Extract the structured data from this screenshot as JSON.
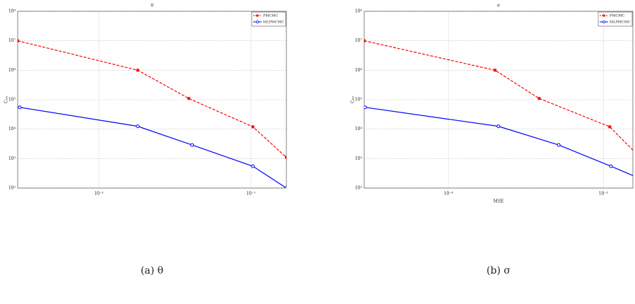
{
  "chart_data": [
    {
      "type": "line",
      "title": "θ",
      "caption": "(a)  θ",
      "y_label": "Cₜₒₜ",
      "xscale": "log",
      "yscale": "log",
      "grid": true,
      "legend": "upper right",
      "xlim": [
        0.00292,
        0.171
      ],
      "ylim": [
        100,
        100000000
      ],
      "xticks": [
        {
          "value": 0.01,
          "label": "10⁻²"
        },
        {
          "value": 0.1,
          "label": "10⁻¹"
        }
      ],
      "yticks": [
        {
          "value": 100,
          "label": "10²"
        },
        {
          "value": 1000,
          "label": "10³"
        },
        {
          "value": 10000,
          "label": "10⁴"
        },
        {
          "value": 100000,
          "label": "10⁵"
        },
        {
          "value": 1000000,
          "label": "10⁶"
        },
        {
          "value": 10000000,
          "label": "10⁷"
        },
        {
          "value": 100000000,
          "label": "10⁸"
        }
      ],
      "series": [
        {
          "name": "PMCMC",
          "color": "#ff0000",
          "linestyle": "dashed",
          "marker": "square",
          "x": [
            0.00292,
            0.018,
            0.039,
            0.103,
            0.171
          ],
          "values": [
            10000000,
            1000000,
            110000,
            12000,
            1100
          ]
        },
        {
          "name": "MLPMCMC",
          "color": "#0000ff",
          "linestyle": "solid",
          "marker": "circle",
          "x": [
            0.00301,
            0.018,
            0.041,
            0.103,
            0.171
          ],
          "values": [
            55000,
            12500,
            2900,
            550,
            100
          ]
        }
      ]
    },
    {
      "type": "line",
      "title": "σ",
      "caption": "(b)  σ",
      "y_label": "Cₜₒₜ",
      "x_label": "MSE",
      "xscale": "log",
      "yscale": "log",
      "grid": true,
      "legend": "upper right",
      "xlim": [
        2.86e-05,
        0.00155
      ],
      "ylim": [
        100,
        100000000
      ],
      "xticks": [
        {
          "value": 0.0001,
          "label": "10⁻⁴"
        },
        {
          "value": 0.001,
          "label": "10⁻³"
        }
      ],
      "yticks": [
        {
          "value": 100,
          "label": "10²"
        },
        {
          "value": 1000,
          "label": "10³"
        },
        {
          "value": 10000,
          "label": "10⁴"
        },
        {
          "value": 100000,
          "label": "10⁵"
        },
        {
          "value": 1000000,
          "label": "10⁶"
        },
        {
          "value": 10000000,
          "label": "10⁷"
        },
        {
          "value": 100000000,
          "label": "10⁸"
        }
      ],
      "series": [
        {
          "name": "PMCMC",
          "color": "#ff0000",
          "linestyle": "dashed",
          "marker": "square",
          "x": [
            2.86e-05,
            0.0002,
            0.000385,
            0.0011,
            0.002
          ],
          "values": [
            10000000,
            1000000,
            110000,
            12000,
            500
          ]
        },
        {
          "name": "MLPMCMC",
          "color": "#0000ff",
          "linestyle": "solid",
          "marker": "circle",
          "x": [
            2.9e-05,
            0.00021,
            0.000515,
            0.00112,
            0.002
          ],
          "values": [
            55000,
            12500,
            2900,
            550,
            150
          ]
        }
      ]
    }
  ]
}
